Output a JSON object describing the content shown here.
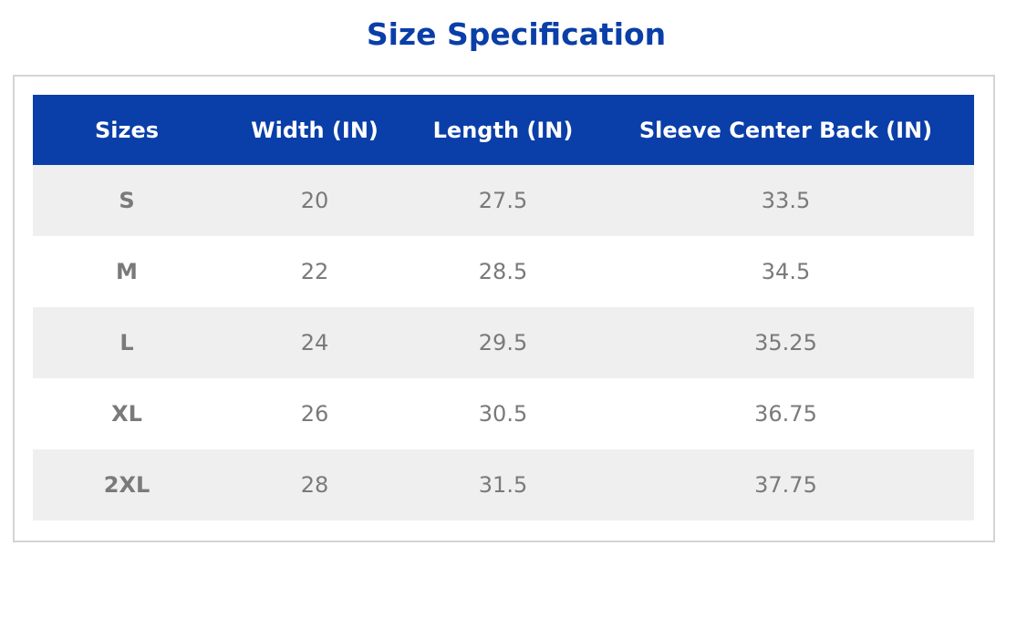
{
  "title": "Size Specification",
  "table": {
    "headers": [
      "Sizes",
      "Width (IN)",
      "Length (IN)",
      "Sleeve Center Back (IN)"
    ],
    "rows": [
      [
        "S",
        "20",
        "27.5",
        "33.5"
      ],
      [
        "M",
        "22",
        "28.5",
        "34.5"
      ],
      [
        "L",
        "24",
        "29.5",
        "35.25"
      ],
      [
        "XL",
        "26",
        "30.5",
        "36.75"
      ],
      [
        "2XL",
        "28",
        "31.5",
        "37.75"
      ]
    ]
  }
}
